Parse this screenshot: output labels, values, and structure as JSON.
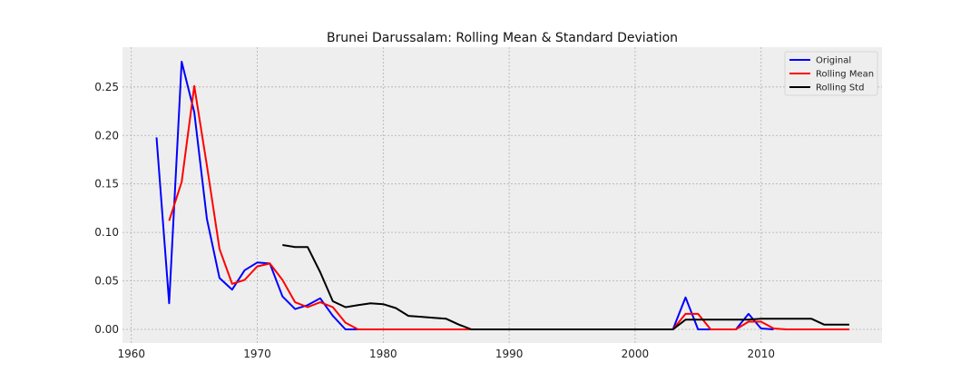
{
  "chart_data": {
    "type": "line",
    "title": "Brunei Darussalam: Rolling Mean & Standard Deviation",
    "xlabel": "",
    "ylabel": "",
    "xlim": [
      1959.3,
      2019.6
    ],
    "ylim": [
      -0.014,
      0.291
    ],
    "x_ticks": [
      1960,
      1970,
      1980,
      1990,
      2000,
      2010
    ],
    "x_tick_labels": [
      "1960",
      "1970",
      "1980",
      "1990",
      "2000",
      "2010"
    ],
    "y_ticks": [
      0.0,
      0.05,
      0.1,
      0.15,
      0.2,
      0.25
    ],
    "y_tick_labels": [
      "0.00",
      "0.05",
      "0.10",
      "0.15",
      "0.20",
      "0.25"
    ],
    "grid": true,
    "legend_position": "top-right",
    "series": [
      {
        "name": "Original",
        "color": "#0000ff",
        "x": [
          1962,
          1963,
          1964,
          1965,
          1966,
          1967,
          1968,
          1969,
          1970,
          1971,
          1972,
          1973,
          1974,
          1975,
          1976,
          1977,
          1978,
          1979,
          1980,
          1981,
          1982,
          1983,
          1984,
          1985,
          1986,
          1987,
          1988,
          1989,
          1990,
          1991,
          1992,
          1993,
          1994,
          1995,
          1996,
          1997,
          1998,
          1999,
          2000,
          2001,
          2002,
          2003,
          2004,
          2005,
          2006,
          2007,
          2008,
          2009,
          2010,
          2011
        ],
        "values": [
          0.198,
          0.027,
          0.276,
          0.224,
          0.114,
          0.053,
          0.041,
          0.061,
          0.069,
          0.068,
          0.034,
          0.021,
          0.025,
          0.032,
          0.014,
          0.0,
          0.0,
          0.0,
          0.0,
          0.0,
          0.0,
          0.0,
          0.0,
          0.0,
          0.0,
          0.0,
          0.0,
          0.0,
          0.0,
          0.0,
          0.0,
          0.0,
          0.0,
          0.0,
          0.0,
          0.0,
          0.0,
          0.0,
          0.0,
          0.0,
          0.0,
          0.0,
          0.033,
          0.0,
          0.0,
          0.0,
          0.0,
          0.016,
          0.001,
          0.0
        ]
      },
      {
        "name": "Rolling Mean",
        "color": "#ff0000",
        "x": [
          1963,
          1964,
          1965,
          1966,
          1967,
          1968,
          1969,
          1970,
          1971,
          1972,
          1973,
          1974,
          1975,
          1976,
          1977,
          1978,
          1979,
          1980,
          1981,
          1982,
          1983,
          1984,
          1985,
          1986,
          1987,
          1988,
          1989,
          1990,
          1991,
          1992,
          1993,
          1994,
          1995,
          1996,
          1997,
          1998,
          1999,
          2000,
          2001,
          2002,
          2003,
          2004,
          2005,
          2006,
          2007,
          2008,
          2009,
          2010,
          2011,
          2012,
          2013,
          2014,
          2015,
          2016,
          2017
        ],
        "values": [
          0.112,
          0.152,
          0.251,
          0.169,
          0.083,
          0.047,
          0.051,
          0.065,
          0.068,
          0.051,
          0.028,
          0.023,
          0.028,
          0.023,
          0.007,
          0.0,
          0.0,
          0.0,
          0.0,
          0.0,
          0.0,
          0.0,
          0.0,
          0.0,
          0.0,
          0.0,
          0.0,
          0.0,
          0.0,
          0.0,
          0.0,
          0.0,
          0.0,
          0.0,
          0.0,
          0.0,
          0.0,
          0.0,
          0.0,
          0.0,
          0.0,
          0.016,
          0.016,
          0.0,
          0.0,
          0.0,
          0.008,
          0.008,
          0.001,
          0.0,
          0.0,
          0.0,
          0.0,
          0.0,
          0.0
        ]
      },
      {
        "name": "Rolling Std",
        "color": "#000000",
        "x": [
          1972,
          1973,
          1974,
          1975,
          1976,
          1977,
          1978,
          1979,
          1980,
          1981,
          1982,
          1983,
          1984,
          1985,
          1986,
          1987,
          1988,
          1989,
          1990,
          1991,
          1992,
          1993,
          1994,
          1995,
          1996,
          1997,
          1998,
          1999,
          2000,
          2001,
          2002,
          2003,
          2004,
          2005,
          2006,
          2007,
          2008,
          2009,
          2010,
          2011,
          2012,
          2013,
          2014,
          2015,
          2016,
          2017
        ],
        "values": [
          0.087,
          0.085,
          0.085,
          0.059,
          0.029,
          0.023,
          0.025,
          0.027,
          0.026,
          0.022,
          0.014,
          0.013,
          0.012,
          0.011,
          0.005,
          0.0,
          0.0,
          0.0,
          0.0,
          0.0,
          0.0,
          0.0,
          0.0,
          0.0,
          0.0,
          0.0,
          0.0,
          0.0,
          0.0,
          0.0,
          0.0,
          0.0,
          0.01,
          0.01,
          0.01,
          0.01,
          0.01,
          0.01,
          0.011,
          0.011,
          0.011,
          0.011,
          0.011,
          0.005,
          0.005,
          0.005
        ]
      }
    ]
  }
}
